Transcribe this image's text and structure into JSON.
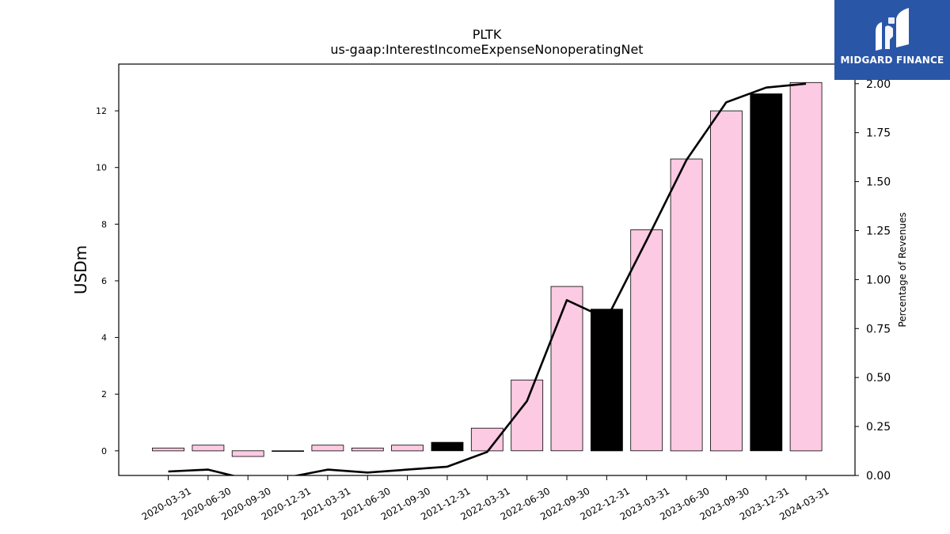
{
  "chart_data": {
    "type": "bar",
    "title": "PLTK",
    "subtitle": "us-gaap:InterestIncomeExpenseNonoperatingNet",
    "ylabel": "USDm",
    "ylabel_right": "Percentage of Revenues",
    "categories": [
      "2020-03-31",
      "2020-06-30",
      "2020-09-30",
      "2020-12-31",
      "2021-03-31",
      "2021-06-30",
      "2021-09-30",
      "2021-12-31",
      "2022-03-31",
      "2022-06-30",
      "2022-09-30",
      "2022-12-31",
      "2023-03-31",
      "2023-06-30",
      "2023-09-30",
      "2023-12-31",
      "2024-03-31"
    ],
    "values": [
      0.1,
      0.2,
      -0.2,
      0.0,
      0.2,
      0.1,
      0.2,
      0.3,
      0.8,
      2.5,
      5.8,
      5.0,
      7.8,
      10.3,
      12.0,
      12.6,
      13.0
    ],
    "bar_colors": [
      "#fccae3",
      "#fccae3",
      "#fccae3",
      "#fccae3",
      "#fccae3",
      "#fccae3",
      "#fccae3",
      "#000000",
      "#fccae3",
      "#fccae3",
      "#fccae3",
      "#000000",
      "#fccae3",
      "#fccae3",
      "#fccae3",
      "#000000",
      "#fccae3"
    ],
    "line_series": {
      "name": "Percentage of Revenues",
      "values": [
        0.02,
        0.03,
        -0.02,
        -0.01,
        0.03,
        0.015,
        0.03,
        0.045,
        0.12,
        0.38,
        0.895,
        0.8,
        1.2,
        1.61,
        1.905,
        1.98,
        2.0
      ]
    },
    "ylim": [
      -0.87,
      13.65
    ],
    "ylim_right": [
      0,
      2.1
    ],
    "yticks": [
      "0",
      "2",
      "4",
      "6",
      "8",
      "10",
      "12"
    ],
    "yticks_right": [
      "0.00",
      "0.25",
      "0.50",
      "0.75",
      "1.00",
      "1.25",
      "1.50",
      "1.75",
      "2.00"
    ],
    "grid": false
  },
  "logo": {
    "text": "MIDGARD FINANCE",
    "color": "#2a56a8"
  }
}
